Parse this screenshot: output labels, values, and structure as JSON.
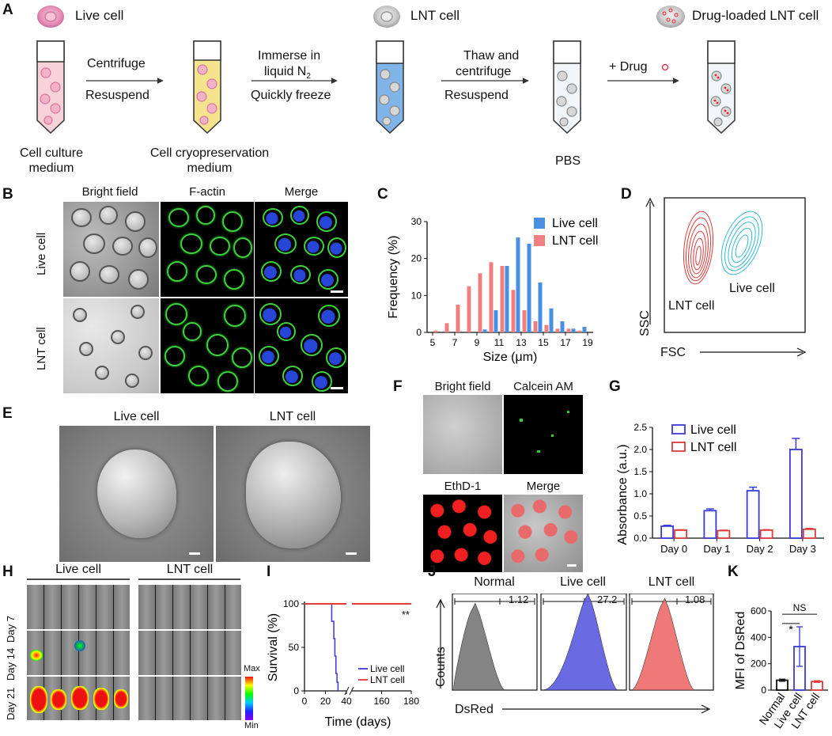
{
  "panelA": {
    "label": "A",
    "legend": {
      "live": "Live cell",
      "lnt": "LNT cell",
      "drug_loaded": "Drug-loaded LNT cell"
    },
    "step1": {
      "top": "Centrifuge",
      "bottom": "Resuspend"
    },
    "step2": {
      "top1": "Immerse in",
      "top2": "liquid N",
      "top2_sub": "2",
      "bottom": "Quickly freeze"
    },
    "step3": {
      "top1": "Thaw and",
      "top2": "centrifuge",
      "bottom": "Resuspend"
    },
    "step4": {
      "top": "+ Drug"
    },
    "tube1": {
      "line1": "Cell culture",
      "line2": "medium"
    },
    "tube2": {
      "line1": "Cell cryopreservation",
      "line2": "medium"
    },
    "tube4": {
      "line1": "PBS"
    }
  },
  "panelB": {
    "label": "B",
    "cols": [
      "Bright field",
      "F-actin",
      "Merge"
    ],
    "rows": [
      "Live cell",
      "LNT cell"
    ]
  },
  "panelC": {
    "label": "C"
  },
  "panelD": {
    "label": "D",
    "y_axis": "SSC",
    "x_axis": "FSC",
    "pop_lnt": "LNT cell",
    "pop_live": "Live cell"
  },
  "panelE": {
    "label": "E",
    "titles": [
      "Live cell",
      "LNT cell"
    ]
  },
  "panelF": {
    "label": "F",
    "titles": [
      "Bright field",
      "Calcein AM",
      "EthD-1",
      "Merge"
    ]
  },
  "panelG": {
    "label": "G"
  },
  "panelH": {
    "label": "H",
    "cols": [
      "Live cell",
      "LNT cell"
    ],
    "rows": [
      "Day 7",
      "Day 14",
      "Day 21"
    ],
    "scale_max": "Max",
    "scale_min": "Min"
  },
  "panelI": {
    "label": "I",
    "sig": "**"
  },
  "panelJ": {
    "label": "J",
    "y_axis": "Counts",
    "x_axis": "DsRed",
    "plots": [
      {
        "title": "Normal",
        "value": "1.12",
        "color": "#777777"
      },
      {
        "title": "Live cell",
        "value": "27.2",
        "color": "#5a5ae0"
      },
      {
        "title": "LNT cell",
        "value": "1.08",
        "color": "#ee6b6b"
      }
    ]
  },
  "panelK": {
    "label": "K",
    "ns": "NS",
    "star": "*"
  },
  "chart_data": [
    {
      "id": "C",
      "type": "bar",
      "xlabel": "Size (μm)",
      "ylabel": "Frequency (%)",
      "ylim": [
        0,
        30
      ],
      "xlim": [
        4.5,
        19.5
      ],
      "xticks": [
        5,
        7,
        9,
        11,
        13,
        15,
        17,
        19
      ],
      "yticks": [
        0,
        10,
        20,
        30
      ],
      "legend": "top-right",
      "series": [
        {
          "name": "Live cell",
          "color": "#4a90e2",
          "x": [
            9.5,
            10.5,
            11.5,
            12.5,
            13.5,
            14.5,
            15.5,
            16.5,
            17.5,
            18.5
          ],
          "values": [
            0.8,
            6,
            18,
            25.7,
            24,
            13.5,
            6.5,
            3,
            1,
            1.5
          ]
        },
        {
          "name": "LNT cell",
          "color": "#f08080",
          "x": [
            5.5,
            6.5,
            7.5,
            8.5,
            9.5,
            10.5,
            11.5,
            12.5,
            13.5,
            14.5,
            15.5,
            16.5,
            17.5,
            18.5
          ],
          "values": [
            0.5,
            2.5,
            7.5,
            12.5,
            16,
            19,
            18,
            11.5,
            6,
            3,
            2,
            1,
            1,
            0.5
          ]
        }
      ]
    },
    {
      "id": "G",
      "type": "bar",
      "ylabel": "Absorbance (a.u.)",
      "ylim": [
        0,
        2.5
      ],
      "yticks": [
        0.0,
        0.5,
        1.0,
        1.5,
        2.0,
        2.5
      ],
      "categories": [
        "Day 0",
        "Day 1",
        "Day 2",
        "Day 3"
      ],
      "legend": "top-left",
      "series": [
        {
          "name": "Live cell",
          "color": "#3a3adb",
          "values": [
            0.27,
            0.62,
            1.07,
            2.0
          ],
          "errors": [
            0.02,
            0.04,
            0.08,
            0.25
          ]
        },
        {
          "name": "LNT cell",
          "color": "#e03a3a",
          "values": [
            0.18,
            0.17,
            0.18,
            0.2
          ],
          "errors": [
            0.01,
            0.01,
            0.01,
            0.02
          ]
        }
      ]
    },
    {
      "id": "I",
      "type": "line",
      "xlabel": "Time (days)",
      "ylabel": "Survival (%)",
      "ylim": [
        0,
        100
      ],
      "yticks": [
        0,
        50,
        100
      ],
      "xticks_left": [
        0,
        20,
        40
      ],
      "xticks_right": [
        160,
        180
      ],
      "legend": "bottom-right",
      "series": [
        {
          "name": "Live cell",
          "color": "#3a3adb",
          "x": [
            0,
            26,
            26,
            28,
            28,
            29,
            29,
            30,
            30,
            31,
            31,
            32,
            32
          ],
          "y": [
            100,
            100,
            80,
            80,
            60,
            60,
            40,
            40,
            20,
            20,
            10,
            10,
            0
          ]
        },
        {
          "name": "LNT cell",
          "color": "#e03a3a",
          "x": [
            0,
            180
          ],
          "y": [
            100,
            100
          ]
        }
      ]
    },
    {
      "id": "K",
      "type": "bar",
      "ylabel": "MFI of DsRed",
      "ylim": [
        0,
        600
      ],
      "yticks": [
        0,
        200,
        400,
        600
      ],
      "categories": [
        "Normal",
        "Live cell",
        "LNT cell"
      ],
      "values": [
        75,
        330,
        65
      ],
      "errors": [
        8,
        150,
        6
      ],
      "colors": [
        "#111111",
        "#3a3adb",
        "#e03a3a"
      ]
    }
  ]
}
